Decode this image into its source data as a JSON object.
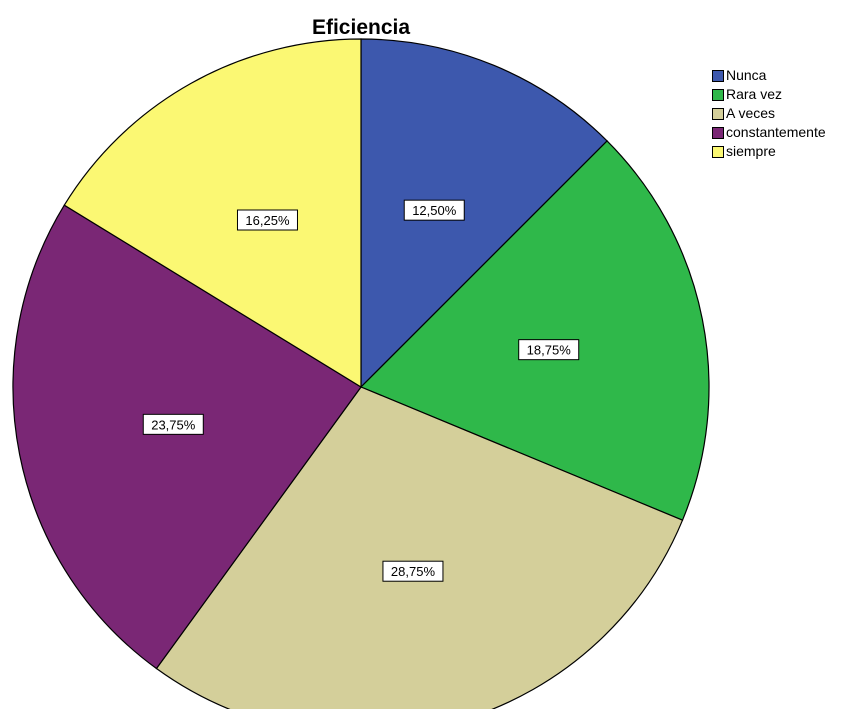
{
  "chart_data": {
    "type": "pie",
    "title": "Eficiencia",
    "categories": [
      "Nunca",
      "Rara vez",
      "A veces",
      "constantemente",
      "siempre"
    ],
    "values": [
      12.5,
      18.75,
      28.75,
      23.75,
      16.25
    ],
    "value_labels": [
      "12,50%",
      "18,75%",
      "28,75%",
      "23,75%",
      "16,25%"
    ],
    "colors": [
      "#3d58ad",
      "#2fb84a",
      "#d4cf9a",
      "#7a2775",
      "#fbf873"
    ],
    "start_angle": "12 o'clock",
    "direction": "clockwise",
    "legend_position": "top-right"
  }
}
